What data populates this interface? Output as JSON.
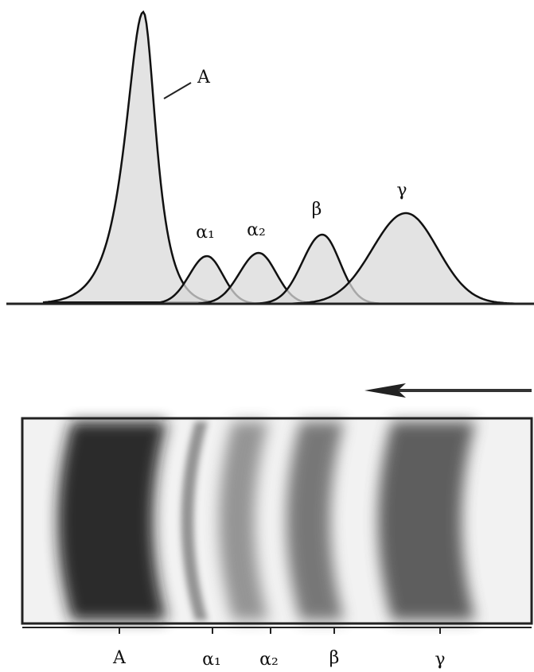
{
  "curve_labels": [
    "A",
    "α₁",
    "α₂",
    "β",
    "γ"
  ],
  "band_labels": [
    "A",
    "α₁",
    "α₂",
    "β",
    "γ"
  ]
}
